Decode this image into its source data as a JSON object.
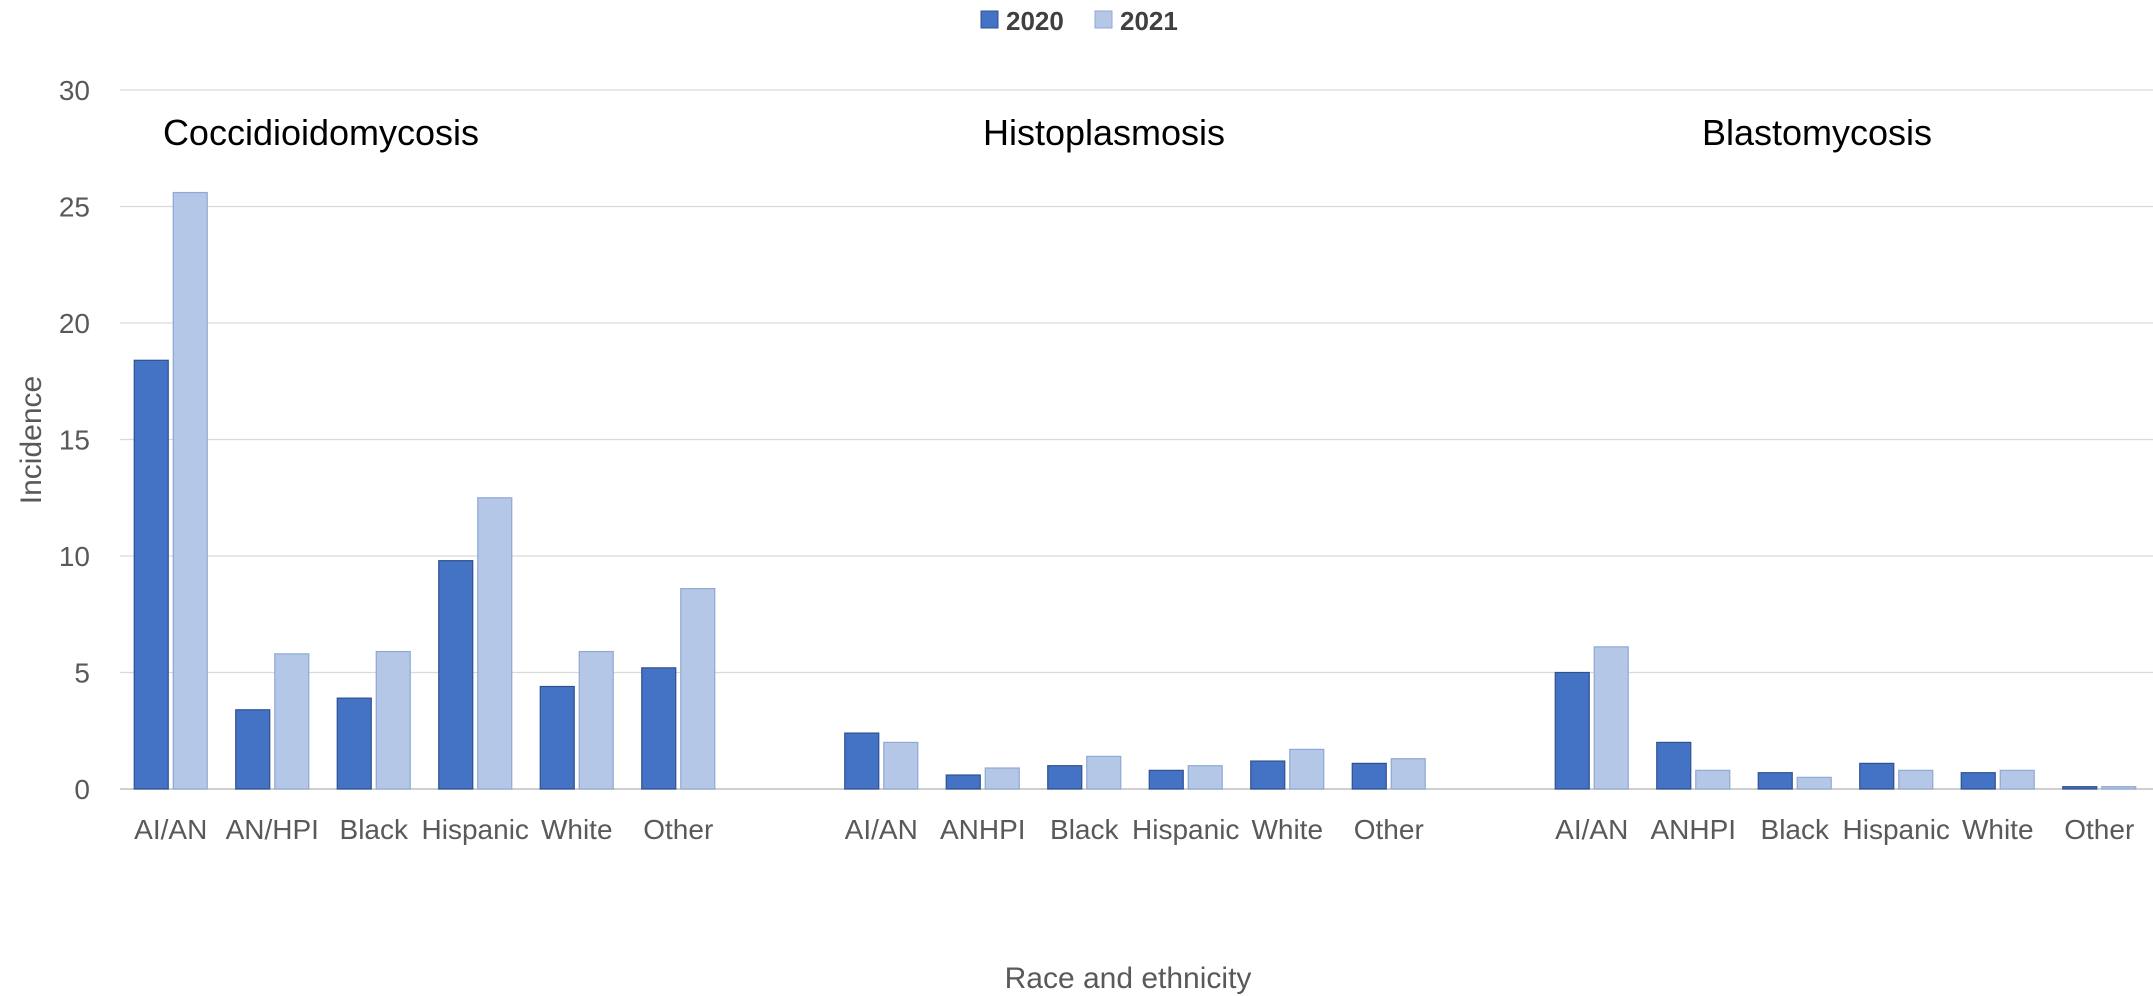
{
  "chart_data": {
    "type": "bar",
    "title": "",
    "xlabel": "Race and ethnicity",
    "ylabel": "Incidence",
    "ylim": [
      0,
      30
    ],
    "yticks": [
      0,
      5,
      10,
      15,
      20,
      25,
      30
    ],
    "grid": true,
    "legend": {
      "position": "top-center",
      "entries": [
        "2020",
        "2021"
      ]
    },
    "colors": {
      "2020": "#4472C4",
      "2021": "#B4C7E7"
    },
    "panels": [
      {
        "title": "Coccidioidomycosis",
        "categories": [
          "AI/AN",
          "AN/HPI",
          "Black",
          "Hispanic",
          "White",
          "Other"
        ],
        "series": [
          {
            "name": "2020",
            "values": [
              18.4,
              3.4,
              3.9,
              9.8,
              4.4,
              5.2
            ]
          },
          {
            "name": "2021",
            "values": [
              25.6,
              5.8,
              5.9,
              12.5,
              5.9,
              8.6
            ]
          }
        ]
      },
      {
        "title": "Histoplasmosis",
        "categories": [
          "AI/AN",
          "ANHPI",
          "Black",
          "Hispanic",
          "White",
          "Other"
        ],
        "series": [
          {
            "name": "2020",
            "values": [
              2.4,
              0.6,
              1.0,
              0.8,
              1.2,
              1.1
            ]
          },
          {
            "name": "2021",
            "values": [
              2.0,
              0.9,
              1.4,
              1.0,
              1.7,
              1.3
            ]
          }
        ]
      },
      {
        "title": "Blastomycosis",
        "categories": [
          "AI/AN",
          "ANHPI",
          "Black",
          "Hispanic",
          "White",
          "Other"
        ],
        "series": [
          {
            "name": "2020",
            "values": [
              5.0,
              2.0,
              0.7,
              1.1,
              0.7,
              0.1
            ]
          },
          {
            "name": "2021",
            "values": [
              6.1,
              0.8,
              0.5,
              0.8,
              0.8,
              0.1
            ]
          }
        ]
      }
    ]
  }
}
